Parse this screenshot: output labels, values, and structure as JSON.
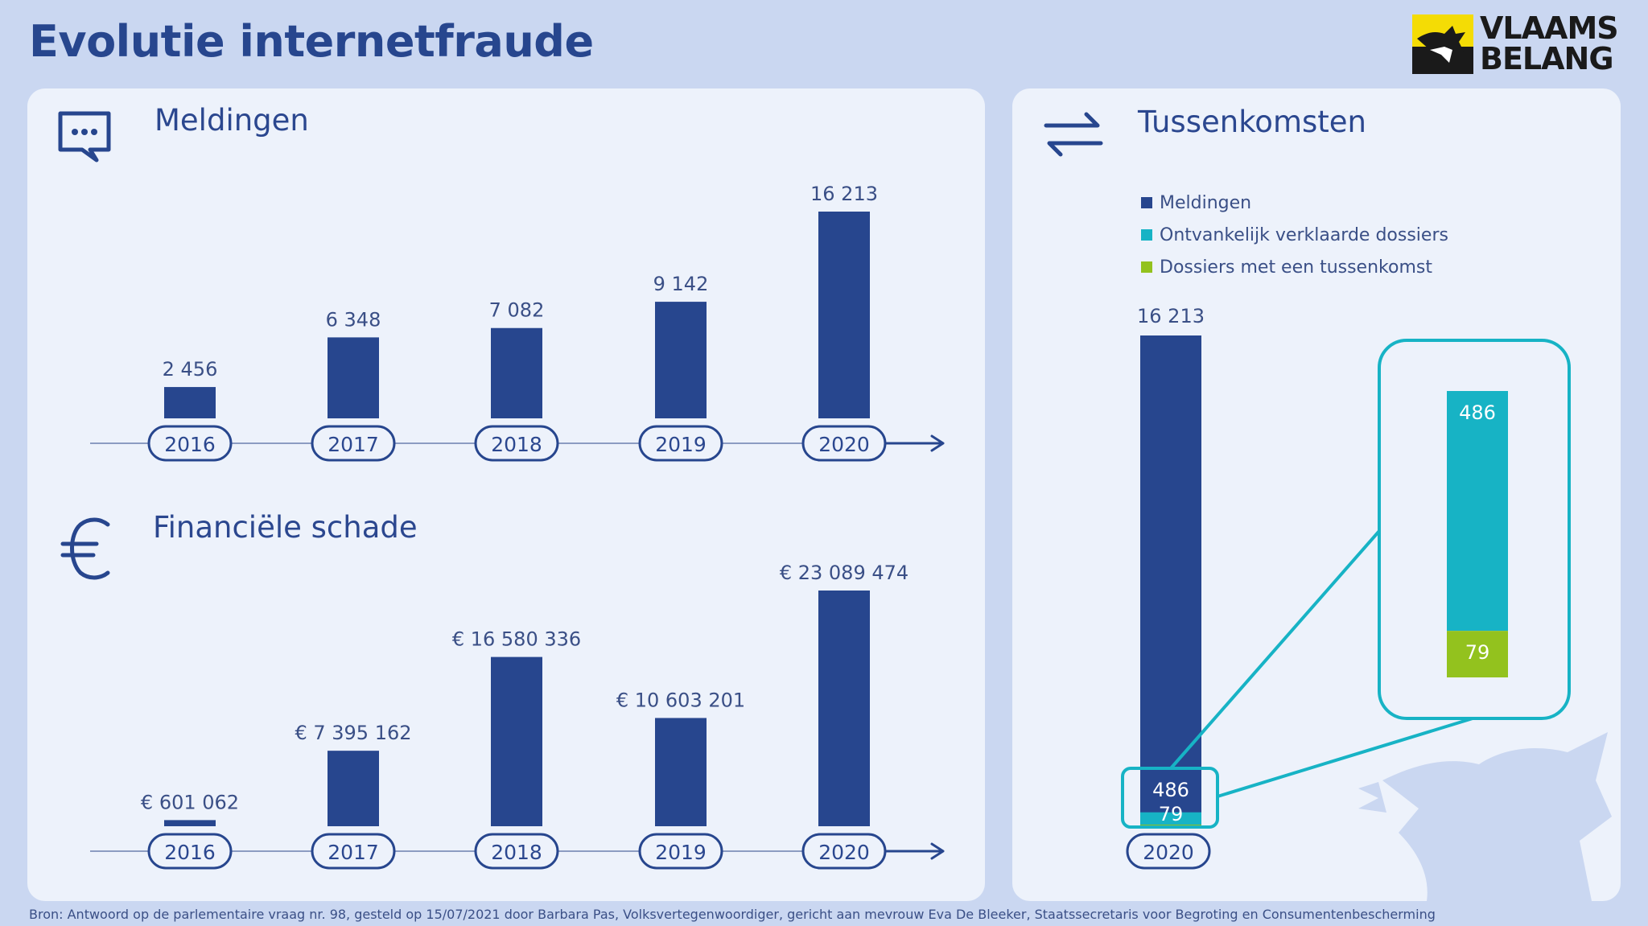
{
  "title": "Evolutie internetfraude",
  "logo": {
    "line1": "VLAAMS",
    "line2": "BELANG"
  },
  "colors": {
    "navy": "#27468e",
    "teal": "#17b3c5",
    "green": "#93c21e",
    "panel": "#edf2fb",
    "background": "#cad7f1"
  },
  "icons": {
    "meldingen": "speech-bubble-icon",
    "schade": "euro-icon",
    "tussenkomsten": "swap-arrows-icon"
  },
  "source": "Bron: Antwoord op de parlementaire vraag nr. 98, gesteld op 15/07/2021 door Barbara Pas, Volksvertegenwoordiger, gericht aan mevrouw Eva De Bleeker, Staatssecretaris voor Begroting en Consumentenbescherming",
  "chart_data": [
    {
      "type": "bar",
      "title": "Meldingen",
      "categories": [
        "2016",
        "2017",
        "2018",
        "2019",
        "2020"
      ],
      "values": [
        2456,
        6348,
        7082,
        9142,
        16213
      ],
      "labels": [
        "2 456",
        "6 348",
        "7 082",
        "9 142",
        "16 213"
      ],
      "color": "#27468e"
    },
    {
      "type": "bar",
      "title": "Financiële schade",
      "categories": [
        "2016",
        "2017",
        "2018",
        "2019",
        "2020"
      ],
      "values": [
        601062,
        7395162,
        16580336,
        10603201,
        23089474
      ],
      "labels": [
        "€ 601 062",
        "€ 7 395 162",
        "€ 16 580 336",
        "€ 10 603 201",
        "€ 23 089 474"
      ],
      "color": "#27468e"
    },
    {
      "type": "bar",
      "title": "Tussenkomsten",
      "categories": [
        "2020"
      ],
      "legend": "top-left",
      "series": [
        {
          "name": "Meldingen",
          "values": [
            16213
          ],
          "label": "16 213",
          "color": "#27468e"
        },
        {
          "name": "Ontvankelijk verklaarde dossiers",
          "values": [
            486
          ],
          "label": "486",
          "color": "#17b3c5"
        },
        {
          "name": "Dossiers met een tussenkomst",
          "values": [
            79
          ],
          "label": "79",
          "color": "#93c21e"
        }
      ]
    }
  ]
}
